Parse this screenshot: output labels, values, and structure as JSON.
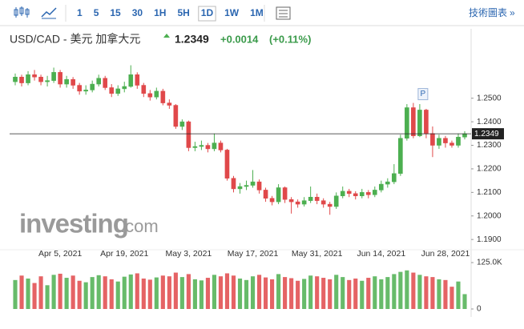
{
  "header": {
    "intervals": [
      "1",
      "5",
      "15",
      "30",
      "1H",
      "5H",
      "1D",
      "1W",
      "1M"
    ],
    "active_interval": 6,
    "tools_link": "技術圖表",
    "symbol": "USD/CAD - 美元 加拿大元",
    "change": "+0.0014",
    "change_pct": "(+0.11%)",
    "watermark_brand": "investing",
    "watermark_suffix": ".com",
    "marker": "P"
  },
  "chart_data": {
    "type": "candlestick",
    "categories": [
      null,
      null,
      null,
      null,
      null,
      null,
      null,
      "Apr 5, 2021",
      null,
      null,
      null,
      null,
      null,
      null,
      null,
      null,
      null,
      "Apr 19, 2021",
      null,
      null,
      null,
      null,
      null,
      null,
      null,
      null,
      null,
      "May 3, 2021",
      null,
      null,
      null,
      null,
      null,
      null,
      null,
      null,
      null,
      "May 17, 2021",
      null,
      null,
      null,
      null,
      null,
      null,
      null,
      null,
      null,
      "May 31, 2021",
      null,
      null,
      null,
      null,
      null,
      null,
      null,
      null,
      null,
      "Jun 14, 2021",
      null,
      null,
      null,
      null,
      null,
      null,
      null,
      null,
      null,
      "Jun 28, 2021",
      null,
      null,
      null
    ],
    "open": [
      1.257,
      1.259,
      1.2565,
      1.26,
      1.259,
      1.257,
      1.2575,
      1.261,
      1.256,
      1.258,
      1.2555,
      1.253,
      1.2535,
      1.256,
      1.2585,
      1.2545,
      1.252,
      1.254,
      1.255,
      1.26,
      1.2555,
      1.252,
      1.2505,
      1.253,
      1.248,
      1.247,
      1.238,
      1.24,
      1.229,
      1.2295,
      1.23,
      1.2285,
      1.231,
      1.228,
      1.216,
      1.2115,
      1.2125,
      1.213,
      1.2145,
      1.211,
      1.2075,
      1.206,
      1.212,
      1.207,
      1.206,
      1.205,
      1.2065,
      1.208,
      1.2065,
      1.205,
      1.204,
      1.2085,
      1.2105,
      1.2095,
      1.2085,
      1.21,
      1.209,
      1.211,
      1.2135,
      1.2145,
      1.218,
      1.233,
      1.246,
      1.234,
      1.245,
      1.235,
      1.23,
      1.233,
      1.231,
      1.23,
      1.2335
    ],
    "high": [
      1.2605,
      1.26,
      1.2615,
      1.262,
      1.26,
      1.2595,
      1.263,
      1.262,
      1.2595,
      1.259,
      1.2565,
      1.2555,
      1.2575,
      1.26,
      1.2595,
      1.256,
      1.2555,
      1.257,
      1.264,
      1.261,
      1.2565,
      1.2535,
      1.2545,
      1.254,
      1.2495,
      1.2475,
      1.241,
      1.2405,
      1.2315,
      1.232,
      1.231,
      1.235,
      1.232,
      1.2285,
      1.217,
      1.214,
      1.215,
      1.2195,
      1.2155,
      1.212,
      1.2085,
      1.2135,
      1.2125,
      1.208,
      1.207,
      1.208,
      1.2125,
      1.2095,
      1.2075,
      1.206,
      1.21,
      1.2125,
      1.2115,
      1.2105,
      1.2115,
      1.211,
      1.2125,
      1.215,
      1.216,
      1.222,
      1.2345,
      1.2475,
      1.248,
      1.2475,
      1.2455,
      1.238,
      1.2345,
      1.234,
      1.232,
      1.235,
      1.236
    ],
    "low": [
      1.2555,
      1.255,
      1.2555,
      1.2575,
      1.2555,
      1.255,
      1.2565,
      1.2545,
      1.2545,
      1.254,
      1.2515,
      1.2515,
      1.2525,
      1.255,
      1.2535,
      1.2505,
      1.251,
      1.2525,
      1.2545,
      1.254,
      1.2505,
      1.249,
      1.2495,
      1.247,
      1.2455,
      1.237,
      1.2365,
      1.2275,
      1.2275,
      1.228,
      1.227,
      1.2275,
      1.227,
      1.215,
      1.21,
      1.2095,
      1.211,
      1.212,
      1.2095,
      1.206,
      1.2045,
      1.205,
      1.2055,
      1.201,
      1.2035,
      1.204,
      1.2055,
      1.205,
      1.2035,
      1.2005,
      1.203,
      1.2075,
      1.208,
      1.207,
      1.2075,
      1.2075,
      1.208,
      1.21,
      1.212,
      1.2135,
      1.217,
      1.232,
      1.233,
      1.2335,
      1.233,
      1.225,
      1.2285,
      1.229,
      1.229,
      1.229,
      1.2325
    ],
    "close": [
      1.259,
      1.2565,
      1.26,
      1.259,
      1.257,
      1.2575,
      1.261,
      1.256,
      1.258,
      1.2555,
      1.253,
      1.2535,
      1.256,
      1.2585,
      1.2545,
      1.252,
      1.254,
      1.255,
      1.26,
      1.2555,
      1.252,
      1.2505,
      1.253,
      1.248,
      1.247,
      1.238,
      1.24,
      1.229,
      1.2295,
      1.23,
      1.2285,
      1.231,
      1.228,
      1.216,
      1.2115,
      1.2125,
      1.213,
      1.2145,
      1.211,
      1.2075,
      1.206,
      1.212,
      1.207,
      1.206,
      1.205,
      1.2065,
      1.208,
      1.2065,
      1.205,
      1.204,
      1.2085,
      1.2105,
      1.2095,
      1.2085,
      1.21,
      1.209,
      1.211,
      1.2135,
      1.2145,
      1.218,
      1.233,
      1.246,
      1.234,
      1.245,
      1.235,
      1.23,
      1.233,
      1.231,
      1.23,
      1.2335,
      1.2349
    ],
    "volume": [
      78000,
      90000,
      82000,
      70000,
      88000,
      64000,
      92000,
      95000,
      84000,
      90000,
      76000,
      72000,
      86000,
      91000,
      88000,
      80000,
      74000,
      87000,
      93000,
      96000,
      82000,
      79000,
      85000,
      90000,
      88000,
      98000,
      86000,
      94000,
      80000,
      77000,
      84000,
      92000,
      88000,
      96000,
      90000,
      82000,
      78000,
      88000,
      92000,
      85000,
      80000,
      94000,
      86000,
      83000,
      76000,
      81000,
      90000,
      88000,
      84000,
      80000,
      92000,
      86000,
      78000,
      82000,
      76000,
      84000,
      88000,
      80000,
      86000,
      94000,
      100000,
      104000,
      98000,
      92000,
      88000,
      86000,
      80000,
      78000,
      60000,
      74000,
      40000
    ],
    "up_color": "#4caf50",
    "down_color": "#e0484a",
    "ylim": [
      1.187,
      1.272
    ],
    "yticks": [
      {
        "value": 1.25,
        "label": "1.2500"
      },
      {
        "value": 1.24,
        "label": "1.2400"
      },
      {
        "value": 1.23,
        "label": "1.2300"
      },
      {
        "value": 1.22,
        "label": "1.2200"
      },
      {
        "value": 1.21,
        "label": "1.2100"
      },
      {
        "value": 1.2,
        "label": "1.2000"
      },
      {
        "value": 1.19,
        "label": "1.1900"
      }
    ],
    "volume_ylim": [
      0,
      138000
    ],
    "volume_ticks": [
      {
        "value": 125000,
        "label": "125.0K"
      },
      0
    ],
    "last_price": 1.2349
  }
}
